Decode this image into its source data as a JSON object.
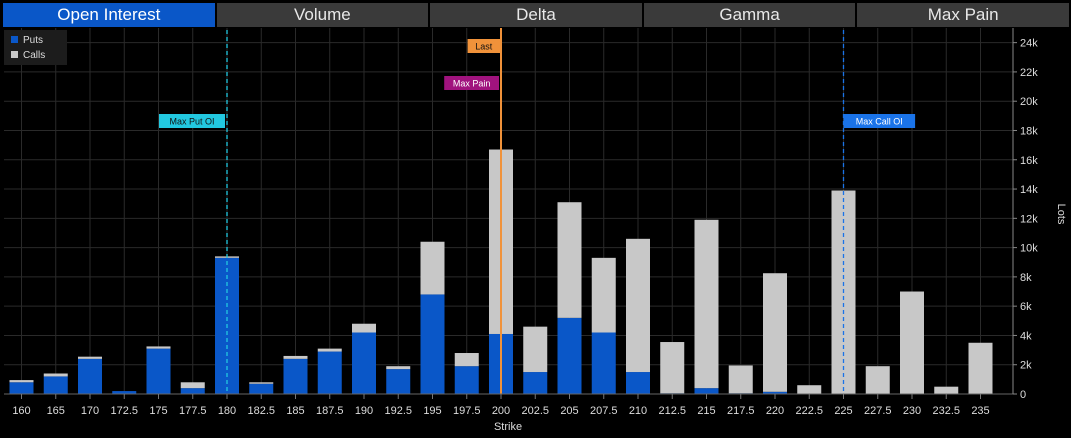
{
  "tabs": [
    {
      "label": "Open Interest",
      "active": true
    },
    {
      "label": "Volume",
      "active": false
    },
    {
      "label": "Delta",
      "active": false
    },
    {
      "label": "Gamma",
      "active": false
    },
    {
      "label": "Max Pain",
      "active": false
    }
  ],
  "chart_data": {
    "type": "bar",
    "stacked": true,
    "xlabel": "Strike",
    "ylabel": "Lots",
    "ylim": [
      0,
      25000
    ],
    "yticks": [
      0,
      2000,
      4000,
      6000,
      8000,
      10000,
      12000,
      14000,
      16000,
      18000,
      20000,
      22000,
      24000
    ],
    "ytick_labels": [
      "0",
      "2k",
      "4k",
      "6k",
      "8k",
      "10k",
      "12k",
      "14k",
      "16k",
      "18k",
      "20k",
      "22k",
      "24k"
    ],
    "y_axis_side": "right",
    "grid": true,
    "legend_position": "top-left",
    "categories": [
      "160",
      "165",
      "170",
      "172.5",
      "175",
      "177.5",
      "180",
      "182.5",
      "185",
      "187.5",
      "190",
      "192.5",
      "195",
      "197.5",
      "200",
      "202.5",
      "205",
      "207.5",
      "210",
      "212.5",
      "215",
      "217.5",
      "220",
      "222.5",
      "225",
      "227.5",
      "230",
      "232.5",
      "235"
    ],
    "series": [
      {
        "name": "Puts",
        "color": "#0a57c8",
        "values": [
          800,
          1200,
          2400,
          200,
          3100,
          400,
          9300,
          700,
          2400,
          2900,
          4200,
          1700,
          6800,
          1900,
          4100,
          1500,
          5200,
          4200,
          1500,
          50,
          400,
          50,
          150,
          0,
          0,
          0,
          0,
          0,
          0
        ]
      },
      {
        "name": "Calls",
        "color": "#c8c8c8",
        "values": [
          150,
          200,
          150,
          0,
          150,
          400,
          100,
          100,
          200,
          200,
          600,
          200,
          3600,
          900,
          12600,
          3100,
          7900,
          5100,
          9100,
          3500,
          11500,
          1900,
          8100,
          600,
          13900,
          1900,
          7000,
          500,
          3500
        ]
      }
    ],
    "markers": [
      {
        "label": "Max Put OI",
        "strike": "180",
        "color": "#22c8e0",
        "style": "dashed"
      },
      {
        "label": "Last",
        "strike": "200",
        "color": "#f0923a",
        "style": "solid"
      },
      {
        "label": "Max Pain",
        "strike": "200",
        "color": "#a0137e",
        "style": "none"
      },
      {
        "label": "Max Call OI",
        "strike": "225",
        "color": "#1a73e8",
        "style": "dashed"
      }
    ]
  }
}
